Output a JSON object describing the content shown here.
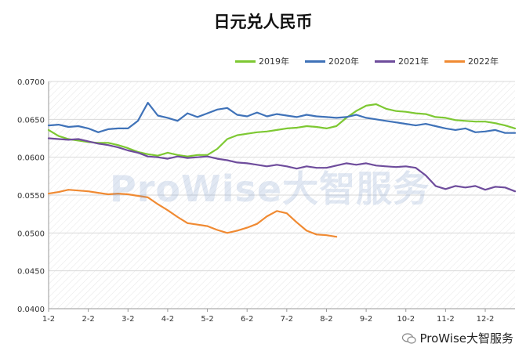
{
  "chart_data": {
    "type": "line",
    "title": "日元兑人民币",
    "xlabel": "",
    "ylabel": "",
    "ylim": [
      0.04,
      0.07
    ],
    "yticks": [
      "0.0700",
      "0.0650",
      "0.0600",
      "0.0550",
      "0.0500",
      "0.0450",
      "0.0400"
    ],
    "x_ticks": [
      "1-2",
      "2-2",
      "3-2",
      "4-2",
      "5-2",
      "6-2",
      "7-2",
      "8-2",
      "9-2",
      "10-2",
      "11-2",
      "12-2"
    ],
    "legend_position": "top-right",
    "grid": true,
    "series": [
      {
        "name": "2019年",
        "color": "#7dc832",
        "x": [
          0,
          0.25,
          0.5,
          0.75,
          1,
          1.25,
          1.5,
          1.75,
          2,
          2.25,
          2.5,
          2.75,
          3,
          3.25,
          3.5,
          3.75,
          4,
          4.25,
          4.5,
          4.75,
          5,
          5.25,
          5.5,
          5.75,
          6,
          6.25,
          6.5,
          6.75,
          7,
          7.25,
          7.5,
          7.75,
          8,
          8.25,
          8.5,
          8.75,
          9,
          9.25,
          9.5,
          9.75,
          10,
          10.25,
          10.5,
          10.75,
          11,
          11.25,
          11.5,
          11.75
        ],
        "values": [
          0.0636,
          0.0628,
          0.0624,
          0.0622,
          0.062,
          0.0619,
          0.0619,
          0.0616,
          0.0612,
          0.0607,
          0.0604,
          0.0602,
          0.0606,
          0.0603,
          0.0601,
          0.0603,
          0.0603,
          0.0611,
          0.0624,
          0.0629,
          0.0631,
          0.0633,
          0.0634,
          0.0636,
          0.0638,
          0.0639,
          0.0641,
          0.064,
          0.0638,
          0.0641,
          0.0652,
          0.0661,
          0.0668,
          0.067,
          0.0664,
          0.0661,
          0.066,
          0.0658,
          0.0657,
          0.0653,
          0.0652,
          0.0649,
          0.0648,
          0.0647,
          0.0647,
          0.0645,
          0.0642,
          0.0638
        ]
      },
      {
        "name": "2020年",
        "color": "#3f72b8",
        "x": [
          0,
          0.25,
          0.5,
          0.75,
          1,
          1.25,
          1.5,
          1.75,
          2,
          2.25,
          2.5,
          2.75,
          3,
          3.25,
          3.5,
          3.75,
          4,
          4.25,
          4.5,
          4.75,
          5,
          5.25,
          5.5,
          5.75,
          6,
          6.25,
          6.5,
          6.75,
          7,
          7.25,
          7.5,
          7.75,
          8,
          8.25,
          8.5,
          8.75,
          9,
          9.25,
          9.5,
          9.75,
          10,
          10.25,
          10.5,
          10.75,
          11,
          11.25,
          11.5,
          11.75
        ],
        "values": [
          0.0642,
          0.0643,
          0.064,
          0.0641,
          0.0638,
          0.0633,
          0.0637,
          0.0638,
          0.0638,
          0.0648,
          0.0672,
          0.0655,
          0.0652,
          0.0648,
          0.0658,
          0.0653,
          0.0658,
          0.0663,
          0.0665,
          0.0656,
          0.0654,
          0.0659,
          0.0654,
          0.0657,
          0.0655,
          0.0653,
          0.0656,
          0.0654,
          0.0653,
          0.0652,
          0.0653,
          0.0656,
          0.0652,
          0.065,
          0.0648,
          0.0646,
          0.0644,
          0.0642,
          0.0644,
          0.0641,
          0.0638,
          0.0636,
          0.0638,
          0.0633,
          0.0634,
          0.0636,
          0.0632,
          0.0632
        ]
      },
      {
        "name": "2021年",
        "color": "#6e4c9c",
        "x": [
          0,
          0.25,
          0.5,
          0.75,
          1,
          1.25,
          1.5,
          1.75,
          2,
          2.25,
          2.5,
          2.75,
          3,
          3.25,
          3.5,
          3.75,
          4,
          4.25,
          4.5,
          4.75,
          5,
          5.25,
          5.5,
          5.75,
          6,
          6.25,
          6.5,
          6.75,
          7,
          7.25,
          7.5,
          7.75,
          8,
          8.25,
          8.5,
          8.75,
          9,
          9.25,
          9.5,
          9.75,
          10,
          10.25,
          10.5,
          10.75,
          11,
          11.25,
          11.5,
          11.75
        ],
        "values": [
          0.0625,
          0.0624,
          0.0623,
          0.0624,
          0.0621,
          0.0618,
          0.0616,
          0.0613,
          0.0609,
          0.0606,
          0.0601,
          0.06,
          0.0598,
          0.0601,
          0.0599,
          0.06,
          0.0601,
          0.0598,
          0.0596,
          0.0593,
          0.0592,
          0.059,
          0.0588,
          0.059,
          0.0588,
          0.0585,
          0.0588,
          0.0586,
          0.0586,
          0.0589,
          0.0592,
          0.059,
          0.0592,
          0.0589,
          0.0588,
          0.0587,
          0.0588,
          0.0586,
          0.0576,
          0.0562,
          0.0558,
          0.0562,
          0.056,
          0.0562,
          0.0557,
          0.0561,
          0.056,
          0.0555
        ]
      },
      {
        "name": "2022年",
        "color": "#f08a32",
        "x": [
          0,
          0.25,
          0.5,
          0.75,
          1,
          1.25,
          1.5,
          1.75,
          2,
          2.25,
          2.5,
          2.75,
          3,
          3.25,
          3.5,
          3.75,
          4,
          4.25,
          4.5,
          4.75,
          5,
          5.25,
          5.5,
          5.75,
          6,
          6.25,
          6.5,
          6.75,
          7,
          7.25
        ],
        "values": [
          0.0552,
          0.0554,
          0.0557,
          0.0556,
          0.0555,
          0.0553,
          0.0551,
          0.0552,
          0.0551,
          0.0549,
          0.0547,
          0.0538,
          0.053,
          0.0521,
          0.0513,
          0.0511,
          0.0509,
          0.0504,
          0.05,
          0.0503,
          0.0507,
          0.0512,
          0.0522,
          0.0529,
          0.0526,
          0.0514,
          0.0503,
          0.0498,
          0.0497,
          0.0495
        ]
      }
    ]
  },
  "watermark": "ProWise大智服务",
  "footer_brand": "ProWise大智服务"
}
